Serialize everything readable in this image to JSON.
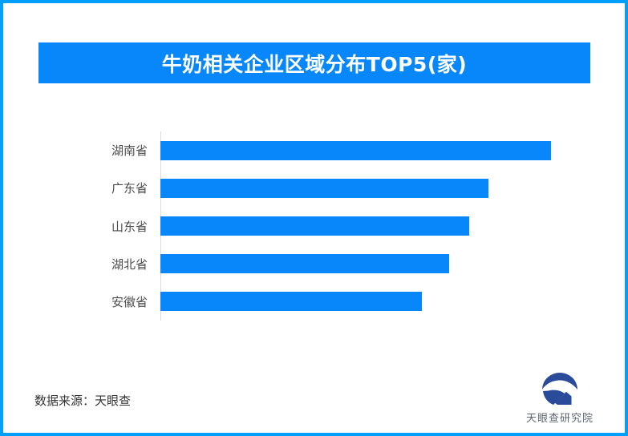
{
  "banner": {
    "title": "牛奶相关企业区域分布TOP5(家)"
  },
  "chart_data": {
    "type": "bar",
    "orientation": "horizontal",
    "title": "牛奶相关企业区域分布TOP5(家)",
    "categories": [
      "湖南省",
      "广东省",
      "山东省",
      "湖北省",
      "安徽省"
    ],
    "values": [
      100,
      84,
      79,
      74,
      67
    ],
    "values_note": "bars carry no numeric labels; values estimated as percent of longest bar",
    "xlabel": "",
    "ylabel": "",
    "value_labels_shown": false,
    "grid": false,
    "legend": "none",
    "bar_color": "#0887fb",
    "axis_line_color": "#d9d9d9"
  },
  "footer": {
    "source": "数据来源：天眼查",
    "brand": "天眼查研究院"
  },
  "colors": {
    "frame_border": "#00a0fa",
    "accent_blue": "#0887fb",
    "banner_text": "#ffffff",
    "category_label_text": "#4d4d4d",
    "source_text": "#333333",
    "brand_text": "#5c6673",
    "logo_mark": "#2a4a9a"
  }
}
